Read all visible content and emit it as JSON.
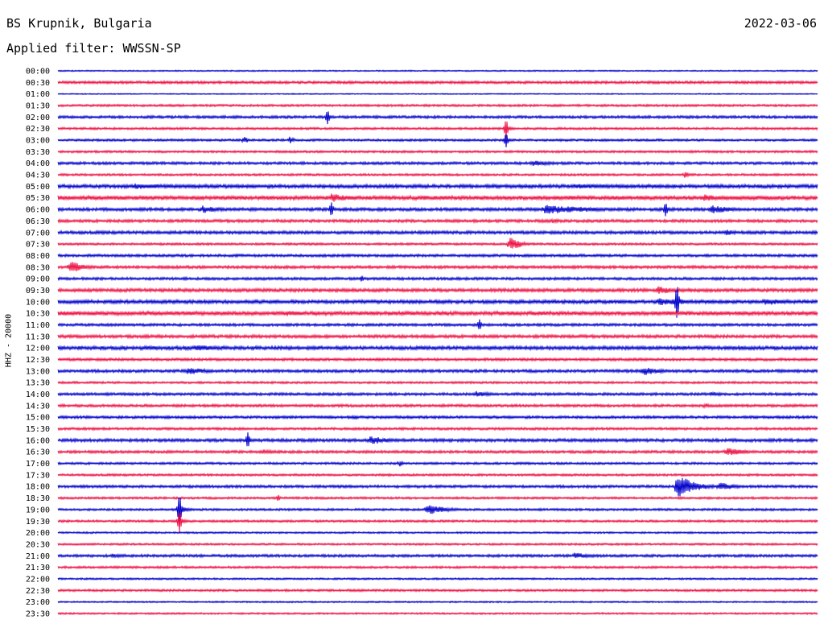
{
  "header": {
    "station": "BS Krupnik, Bulgaria",
    "date": "2022-03-06",
    "filter": "Applied filter: WWSSN-SP"
  },
  "chart_data": {
    "type": "line",
    "kind": "helicorder",
    "ylabel": "HHZ - 20000",
    "trace_colors": [
      "#0000cc",
      "#ee1144"
    ],
    "rows": [
      "00:00",
      "00:30",
      "01:00",
      "01:30",
      "02:00",
      "02:30",
      "03:00",
      "03:30",
      "04:00",
      "04:30",
      "05:00",
      "05:30",
      "06:00",
      "06:30",
      "07:00",
      "07:30",
      "08:00",
      "08:30",
      "09:00",
      "09:30",
      "10:00",
      "10:30",
      "11:00",
      "11:30",
      "12:00",
      "12:30",
      "13:00",
      "13:30",
      "14:00",
      "14:30",
      "15:00",
      "15:30",
      "16:00",
      "16:30",
      "17:00",
      "17:30",
      "18:00",
      "18:30",
      "19:00",
      "19:30",
      "20:00",
      "20:30",
      "21:00",
      "21:30",
      "22:00",
      "22:30",
      "23:00",
      "23:30"
    ],
    "row_minutes": 30,
    "noise": [
      0.6,
      1.2,
      0.5,
      1.0,
      1.2,
      1.0,
      1.0,
      1.0,
      1.2,
      1.0,
      1.6,
      1.8,
      1.4,
      1.3,
      1.4,
      1.0,
      1.2,
      1.3,
      1.2,
      1.5,
      1.6,
      1.8,
      1.2,
      1.4,
      1.6,
      1.2,
      1.3,
      1.0,
      1.2,
      1.2,
      1.2,
      1.1,
      1.4,
      1.2,
      1.0,
      1.0,
      1.2,
      1.0,
      1.0,
      1.0,
      0.8,
      0.9,
      1.2,
      1.0,
      0.8,
      1.0,
      0.7,
      0.8
    ],
    "events": [
      {
        "row": 4,
        "t": 0.355,
        "amp": 9,
        "dur": 0.003,
        "kind": "spike"
      },
      {
        "row": 6,
        "t": 0.245,
        "amp": 5,
        "dur": 0.015,
        "kind": "burst"
      },
      {
        "row": 6,
        "t": 0.305,
        "amp": 5,
        "dur": 0.015,
        "kind": "burst"
      },
      {
        "row": 5,
        "t": 0.59,
        "amp": 12,
        "dur": 0.004,
        "kind": "spike"
      },
      {
        "row": 6,
        "t": 0.59,
        "amp": 9,
        "dur": 0.005,
        "kind": "spike"
      },
      {
        "row": 8,
        "t": 0.625,
        "amp": 4,
        "dur": 0.06,
        "kind": "burst"
      },
      {
        "row": 9,
        "t": 0.825,
        "amp": 4,
        "dur": 0.02,
        "kind": "burst"
      },
      {
        "row": 10,
        "t": 0.1,
        "amp": 4,
        "dur": 0.15,
        "kind": "burst"
      },
      {
        "row": 10,
        "t": 0.68,
        "amp": 3,
        "dur": 0.3,
        "kind": "burst"
      },
      {
        "row": 11,
        "t": 0.0,
        "amp": 3,
        "dur": 0.1,
        "kind": "burst"
      },
      {
        "row": 11,
        "t": 0.36,
        "amp": 6,
        "dur": 0.06,
        "kind": "burst"
      },
      {
        "row": 11,
        "t": 0.48,
        "amp": 4,
        "dur": 0.02,
        "kind": "burst"
      },
      {
        "row": 11,
        "t": 0.85,
        "amp": 5,
        "dur": 0.06,
        "kind": "burst"
      },
      {
        "row": 12,
        "t": 0.19,
        "amp": 5,
        "dur": 0.06,
        "kind": "burst"
      },
      {
        "row": 12,
        "t": 0.36,
        "amp": 9,
        "dur": 0.01,
        "kind": "spike"
      },
      {
        "row": 12,
        "t": 0.64,
        "amp": 6,
        "dur": 0.16,
        "kind": "burst"
      },
      {
        "row": 12,
        "t": 0.8,
        "amp": 9,
        "dur": 0.01,
        "kind": "spike"
      },
      {
        "row": 12,
        "t": 0.86,
        "amp": 6,
        "dur": 0.06,
        "kind": "burst"
      },
      {
        "row": 13,
        "t": 0.65,
        "amp": 3,
        "dur": 0.04,
        "kind": "burst"
      },
      {
        "row": 14,
        "t": 0.88,
        "amp": 5,
        "dur": 0.02,
        "kind": "burst"
      },
      {
        "row": 15,
        "t": 0.595,
        "amp": 10,
        "dur": 0.03,
        "kind": "burst"
      },
      {
        "row": 17,
        "t": 0.015,
        "amp": 8,
        "dur": 0.05,
        "kind": "burst"
      },
      {
        "row": 18,
        "t": 0.4,
        "amp": 4,
        "dur": 0.005,
        "kind": "spike"
      },
      {
        "row": 19,
        "t": 0.79,
        "amp": 6,
        "dur": 0.05,
        "kind": "burst"
      },
      {
        "row": 20,
        "t": 0.815,
        "amp": 22,
        "dur": 0.04,
        "kind": "spike"
      },
      {
        "row": 20,
        "t": 0.79,
        "amp": 5,
        "dur": 0.1,
        "kind": "burst"
      },
      {
        "row": 20,
        "t": 0.93,
        "amp": 5,
        "dur": 0.07,
        "kind": "burst"
      },
      {
        "row": 21,
        "t": 0.0,
        "amp": 3,
        "dur": 0.15,
        "kind": "burst"
      },
      {
        "row": 21,
        "t": 0.3,
        "amp": 4,
        "dur": 0.06,
        "kind": "burst"
      },
      {
        "row": 22,
        "t": 0.555,
        "amp": 7,
        "dur": 0.004,
        "kind": "spike"
      },
      {
        "row": 24,
        "t": 0.18,
        "amp": 4,
        "dur": 0.1,
        "kind": "burst"
      },
      {
        "row": 24,
        "t": 0.77,
        "amp": 4,
        "dur": 0.015,
        "kind": "burst"
      },
      {
        "row": 26,
        "t": 0.17,
        "amp": 5,
        "dur": 0.07,
        "kind": "burst"
      },
      {
        "row": 26,
        "t": 0.77,
        "amp": 6,
        "dur": 0.05,
        "kind": "burst"
      },
      {
        "row": 28,
        "t": 0.55,
        "amp": 4,
        "dur": 0.05,
        "kind": "burst"
      },
      {
        "row": 28,
        "t": 0.86,
        "amp": 3,
        "dur": 0.04,
        "kind": "burst"
      },
      {
        "row": 29,
        "t": 0.85,
        "amp": 4,
        "dur": 0.02,
        "kind": "burst"
      },
      {
        "row": 30,
        "t": 0.39,
        "amp": 4,
        "dur": 0.01,
        "kind": "burst"
      },
      {
        "row": 32,
        "t": 0.25,
        "amp": 10,
        "dur": 0.004,
        "kind": "spike"
      },
      {
        "row": 32,
        "t": 0.41,
        "amp": 6,
        "dur": 0.06,
        "kind": "burst"
      },
      {
        "row": 33,
        "t": 0.27,
        "amp": 3,
        "dur": 0.05,
        "kind": "burst"
      },
      {
        "row": 33,
        "t": 0.88,
        "amp": 5,
        "dur": 0.07,
        "kind": "burst"
      },
      {
        "row": 34,
        "t": 0.45,
        "amp": 4,
        "dur": 0.015,
        "kind": "burst"
      },
      {
        "row": 36,
        "t": 0.815,
        "amp": 16,
        "dur": 0.05,
        "kind": "burst"
      },
      {
        "row": 36,
        "t": 0.87,
        "amp": 6,
        "dur": 0.05,
        "kind": "burst"
      },
      {
        "row": 37,
        "t": 0.29,
        "amp": 4,
        "dur": 0.003,
        "kind": "spike"
      },
      {
        "row": 38,
        "t": 0.16,
        "amp": 20,
        "dur": 0.003,
        "kind": "spike"
      },
      {
        "row": 38,
        "t": 0.485,
        "amp": 7,
        "dur": 0.06,
        "kind": "burst"
      },
      {
        "row": 39,
        "t": 0.16,
        "amp": 14,
        "dur": 0.004,
        "kind": "spike"
      },
      {
        "row": 42,
        "t": 0.07,
        "amp": 3,
        "dur": 0.05,
        "kind": "burst"
      },
      {
        "row": 42,
        "t": 0.68,
        "amp": 4,
        "dur": 0.07,
        "kind": "burst"
      }
    ]
  }
}
